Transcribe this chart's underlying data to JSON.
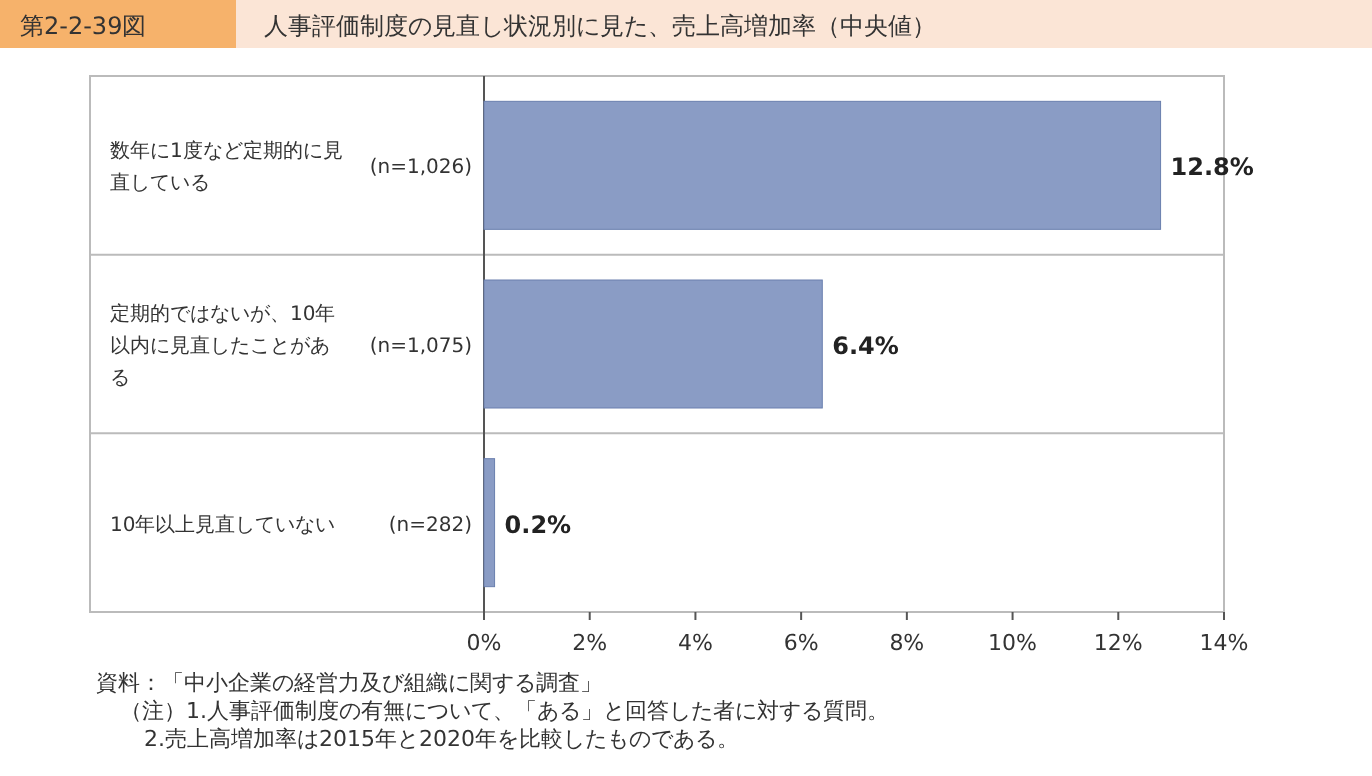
{
  "chart_data": {
    "type": "bar",
    "orientation": "horizontal",
    "title": "人事評価制度の見直し状況別に見た、売上高増加率（中央値）",
    "subtitle": "第2-2-39図",
    "categories": [
      "数年に1度など定期的に見直している (n=1,026)",
      "定期的ではないが、10年以内に見直したことがある (n=1,075)",
      "10年以上見直していない (n=282)"
    ],
    "values": [
      12.8,
      6.4,
      0.2
    ],
    "color": "#8a9cc5",
    "data_labels": true,
    "value_labels": [
      "12.8%",
      "6.4%",
      "0.2%"
    ],
    "xlim": [
      0,
      14
    ],
    "xticks": [
      {
        "value": 0,
        "label": "0%"
      },
      {
        "value": 2,
        "label": "2%"
      },
      {
        "value": 4,
        "label": "4%"
      },
      {
        "value": 6,
        "label": "6%"
      },
      {
        "value": 8,
        "label": "8%"
      },
      {
        "value": 10,
        "label": "10%"
      },
      {
        "value": 12,
        "label": "12%"
      },
      {
        "value": 14,
        "label": "14%"
      }
    ],
    "grid": false,
    "annotations": [
      "資料：「中小企業の経営力及び組織に関する調査」",
      "（注）1.人事評価制度の有無について、「ある」と回答した者に対する質問。",
      "2.売上高増加率は2015年と2020年を比較したものである。"
    ]
  }
}
